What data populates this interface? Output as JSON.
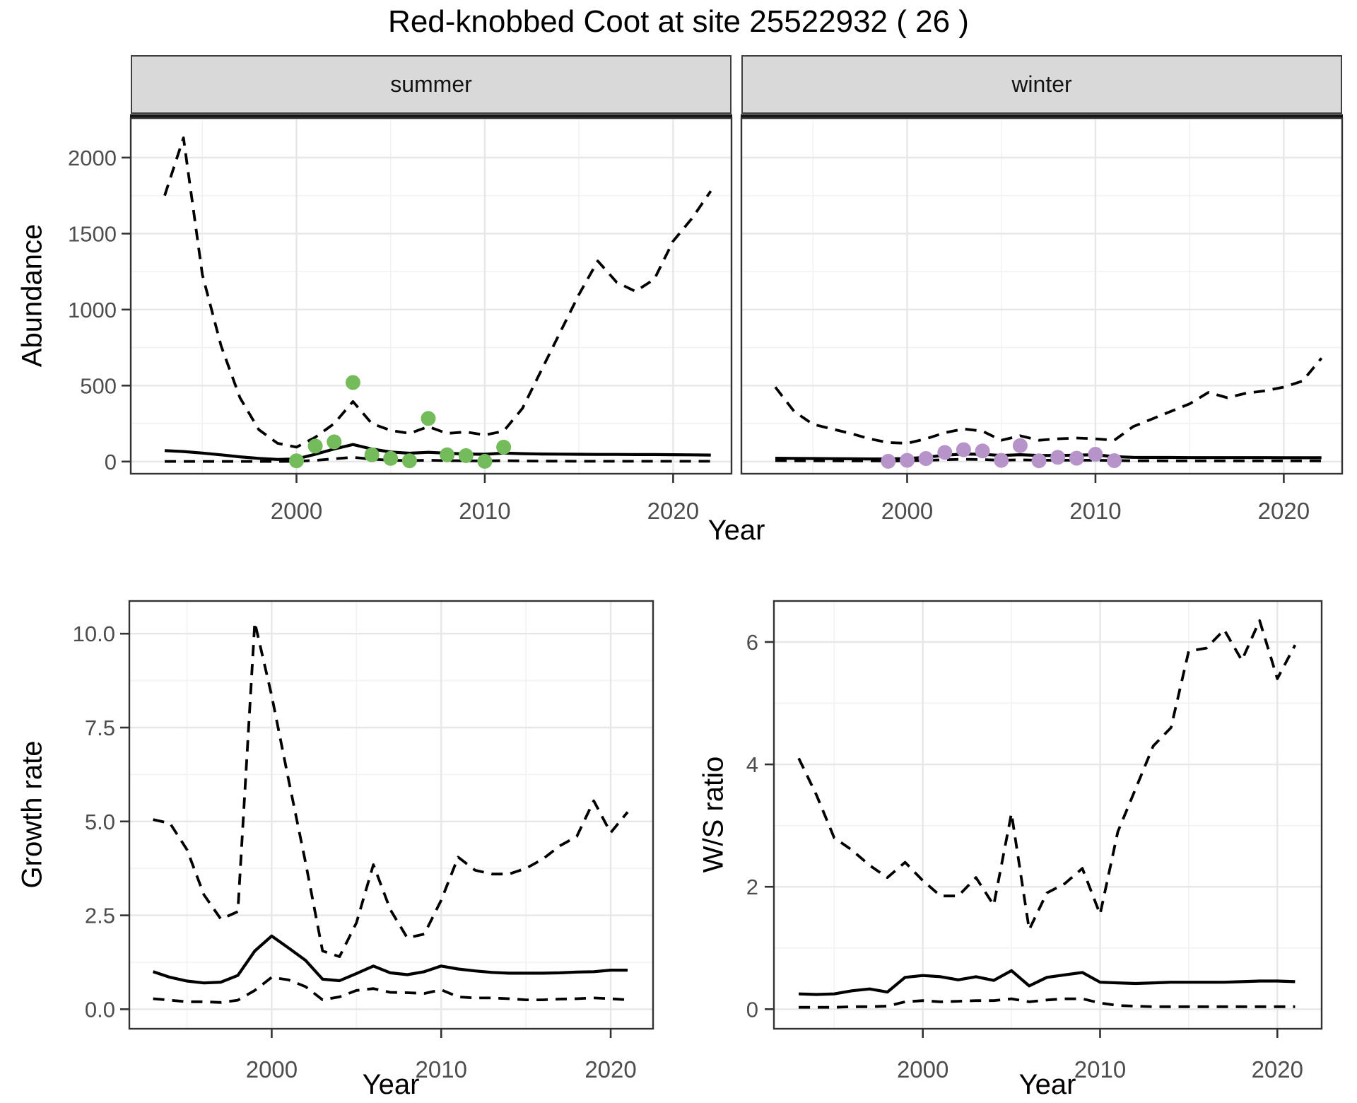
{
  "title": "Red-knobbed Coot at site 25522932 ( 26 )",
  "facets": [
    {
      "label": "summer"
    },
    {
      "label": "winter"
    }
  ],
  "axis_titles": {
    "abundance": "Abundance",
    "year_top": "Year",
    "growth": "Growth rate",
    "year_growth": "Year",
    "ws": "W/S ratio",
    "year_ws": "Year"
  },
  "colors": {
    "summer_points": "#73bb5b",
    "winter_points": "#b694ca",
    "line": "#000000",
    "strip_bg": "#d9d9d9",
    "panel_border": "#333333",
    "grid_major": "#e7e7e7",
    "grid_minor": "#f2f2f2",
    "tick_text": "#4d4d4d"
  },
  "chart_data": [
    {
      "id": "abundance_summer",
      "type": "line",
      "facet": "summer",
      "title": "Abundance - summer facet",
      "xlabel": "Year",
      "ylabel": "Abundance",
      "xlim": [
        1991.2,
        2023.1
      ],
      "ylim": [
        -80,
        2260
      ],
      "x_ticks": {
        "values": [
          2000,
          2010,
          2020
        ],
        "labels": [
          "2000",
          "2010",
          "2020"
        ]
      },
      "y_ticks": {
        "values": [
          0,
          500,
          1000,
          1500,
          2000
        ],
        "labels": [
          "0",
          "500",
          "1000",
          "1500",
          "2000"
        ]
      },
      "x": [
        1993,
        1994,
        1995,
        1996,
        1997,
        1998,
        1999,
        2000,
        2001,
        2002,
        2003,
        2004,
        2005,
        2006,
        2007,
        2008,
        2009,
        2010,
        2011,
        2012,
        2013,
        2014,
        2015,
        2016,
        2017,
        2018,
        2019,
        2020,
        2021,
        2022
      ],
      "series": [
        {
          "name": "upper_ci",
          "style": "dashed",
          "values": [
            1750,
            2130,
            1230,
            760,
            420,
            210,
            120,
            95,
            160,
            250,
            395,
            250,
            205,
            185,
            230,
            185,
            195,
            175,
            200,
            350,
            600,
            850,
            1100,
            1320,
            1180,
            1120,
            1200,
            1450,
            1600,
            1780
          ]
        },
        {
          "name": "mean",
          "style": "solid",
          "values": [
            72,
            66,
            56,
            44,
            31,
            21,
            14,
            17,
            48,
            83,
            112,
            83,
            63,
            55,
            61,
            55,
            50,
            48,
            56,
            52,
            50,
            49,
            48,
            47,
            47,
            46,
            46,
            45,
            44,
            43
          ]
        },
        {
          "name": "lower_ci",
          "style": "dashed",
          "values": [
            1,
            1,
            1,
            1,
            1,
            1,
            1,
            2,
            8,
            18,
            28,
            16,
            9,
            6,
            9,
            6,
            5,
            4,
            6,
            4,
            3,
            3,
            2,
            2,
            2,
            2,
            2,
            2,
            2,
            2
          ]
        }
      ],
      "points": {
        "name": "observed_counts_summer",
        "color": "#73bb5b",
        "x": [
          2000,
          2001,
          2002,
          2003,
          2004,
          2005,
          2006,
          2007,
          2008,
          2009,
          2010,
          2011
        ],
        "y": [
          5,
          102,
          130,
          520,
          44,
          21,
          5,
          284,
          44,
          39,
          2,
          95
        ]
      }
    },
    {
      "id": "abundance_winter",
      "type": "line",
      "facet": "winter",
      "title": "Abundance - winter facet",
      "xlabel": "Year",
      "ylabel": "Abundance",
      "xlim": [
        1991.2,
        2023.1
      ],
      "ylim": [
        -80,
        2260
      ],
      "x_ticks": {
        "values": [
          2000,
          2010,
          2020
        ],
        "labels": [
          "2000",
          "2010",
          "2020"
        ]
      },
      "y_ticks": {
        "values": [
          0,
          500,
          1000,
          1500,
          2000
        ],
        "labels": []
      },
      "x": [
        1993,
        1994,
        1995,
        1996,
        1997,
        1998,
        1999,
        2000,
        2001,
        2002,
        2003,
        2004,
        2005,
        2006,
        2007,
        2008,
        2009,
        2010,
        2011,
        2012,
        2013,
        2014,
        2015,
        2016,
        2017,
        2018,
        2019,
        2020,
        2021,
        2022
      ],
      "series": [
        {
          "name": "upper_ci",
          "style": "dashed",
          "values": [
            490,
            330,
            245,
            215,
            185,
            150,
            125,
            120,
            150,
            190,
            215,
            200,
            140,
            170,
            140,
            150,
            155,
            150,
            140,
            230,
            280,
            330,
            380,
            455,
            420,
            450,
            465,
            490,
            530,
            680
          ]
        },
        {
          "name": "mean",
          "style": "solid",
          "values": [
            22,
            21,
            20,
            19,
            18,
            17,
            17,
            20,
            28,
            42,
            50,
            48,
            40,
            45,
            40,
            40,
            42,
            45,
            32,
            28,
            27,
            27,
            26,
            26,
            26,
            26,
            26,
            25,
            25,
            25
          ]
        },
        {
          "name": "lower_ci",
          "style": "dashed",
          "values": [
            6,
            5,
            5,
            5,
            4,
            4,
            4,
            5,
            8,
            12,
            15,
            13,
            9,
            11,
            9,
            9,
            9,
            9,
            7,
            5,
            5,
            4,
            4,
            4,
            4,
            4,
            4,
            4,
            4,
            4
          ]
        }
      ],
      "points": {
        "name": "observed_counts_winter",
        "color": "#b694ca",
        "x": [
          1999,
          2000,
          2001,
          2002,
          2003,
          2004,
          2005,
          2006,
          2007,
          2008,
          2009,
          2010,
          2011
        ],
        "y": [
          2,
          8,
          20,
          60,
          78,
          70,
          8,
          105,
          5,
          28,
          22,
          48,
          6
        ]
      }
    },
    {
      "id": "growth_rate",
      "type": "line",
      "facet": null,
      "title": "Growth rate",
      "xlabel": "Year",
      "ylabel": "Growth rate",
      "xlim": [
        1991.6,
        2022.5
      ],
      "ylim": [
        -0.52,
        10.87
      ],
      "x_ticks": {
        "values": [
          2000,
          2010,
          2020
        ],
        "labels": [
          "2000",
          "2010",
          "2020"
        ]
      },
      "y_ticks": {
        "values": [
          0,
          2.5,
          5,
          7.5,
          10
        ],
        "labels": [
          "0.0",
          "2.5",
          "5.0",
          "7.5",
          "10.0"
        ]
      },
      "x": [
        1993,
        1994,
        1995,
        1996,
        1997,
        1998,
        1999,
        2000,
        2001,
        2002,
        2003,
        2004,
        2005,
        2006,
        2007,
        2008,
        2009,
        2010,
        2011,
        2012,
        2013,
        2014,
        2015,
        2016,
        2017,
        2018,
        2019,
        2020,
        2021
      ],
      "series": [
        {
          "name": "upper_ci",
          "style": "dashed",
          "values": [
            5.05,
            4.95,
            4.25,
            3.05,
            2.4,
            2.6,
            10.3,
            8.35,
            6.1,
            3.9,
            1.55,
            1.4,
            2.3,
            3.85,
            2.65,
            1.9,
            2.0,
            2.9,
            4.05,
            3.7,
            3.6,
            3.6,
            3.75,
            4.0,
            4.35,
            4.6,
            5.55,
            4.7,
            5.25
          ]
        },
        {
          "name": "mean",
          "style": "solid",
          "values": [
            1.0,
            0.85,
            0.75,
            0.7,
            0.72,
            0.9,
            1.55,
            1.95,
            1.63,
            1.3,
            0.8,
            0.76,
            0.95,
            1.15,
            0.97,
            0.92,
            1.0,
            1.15,
            1.07,
            1.02,
            0.98,
            0.96,
            0.96,
            0.96,
            0.97,
            0.99,
            1.0,
            1.04,
            1.04
          ]
        },
        {
          "name": "lower_ci",
          "style": "dashed",
          "values": [
            0.28,
            0.24,
            0.2,
            0.2,
            0.18,
            0.24,
            0.5,
            0.85,
            0.78,
            0.6,
            0.25,
            0.33,
            0.5,
            0.55,
            0.45,
            0.44,
            0.42,
            0.52,
            0.33,
            0.3,
            0.3,
            0.28,
            0.25,
            0.25,
            0.27,
            0.28,
            0.3,
            0.28,
            0.25
          ]
        }
      ],
      "points": null
    },
    {
      "id": "ws_ratio",
      "type": "line",
      "facet": null,
      "title": "W/S ratio",
      "xlabel": "Year",
      "ylabel": "W/S ratio",
      "xlim": [
        1991.6,
        2022.5
      ],
      "ylim": [
        -0.32,
        6.67
      ],
      "x_ticks": {
        "values": [
          2000,
          2010,
          2020
        ],
        "labels": [
          "2000",
          "2010",
          "2020"
        ]
      },
      "y_ticks": {
        "values": [
          0,
          2,
          4,
          6
        ],
        "labels": [
          "0",
          "2",
          "4",
          "6"
        ]
      },
      "x": [
        1993,
        1994,
        1995,
        1996,
        1997,
        1998,
        1999,
        2000,
        2001,
        2002,
        2003,
        2004,
        2005,
        2006,
        2007,
        2008,
        2009,
        2010,
        2011,
        2012,
        2013,
        2014,
        2015,
        2016,
        2017,
        2018,
        2019,
        2020,
        2021
      ],
      "series": [
        {
          "name": "upper_ci",
          "style": "dashed",
          "values": [
            4.1,
            3.5,
            2.8,
            2.6,
            2.35,
            2.15,
            2.4,
            2.1,
            1.85,
            1.85,
            2.15,
            1.7,
            3.2,
            1.3,
            1.9,
            2.05,
            2.3,
            1.55,
            2.9,
            3.6,
            4.3,
            4.6,
            5.85,
            5.9,
            6.2,
            5.7,
            6.35,
            5.4,
            5.95
          ]
        },
        {
          "name": "mean",
          "style": "solid",
          "values": [
            0.25,
            0.24,
            0.25,
            0.3,
            0.33,
            0.28,
            0.52,
            0.55,
            0.53,
            0.48,
            0.53,
            0.47,
            0.63,
            0.38,
            0.52,
            0.56,
            0.6,
            0.44,
            0.43,
            0.42,
            0.43,
            0.44,
            0.44,
            0.44,
            0.44,
            0.45,
            0.46,
            0.46,
            0.45
          ]
        },
        {
          "name": "lower_ci",
          "style": "dashed",
          "values": [
            0.03,
            0.03,
            0.03,
            0.04,
            0.04,
            0.05,
            0.12,
            0.14,
            0.12,
            0.13,
            0.14,
            0.14,
            0.17,
            0.12,
            0.15,
            0.17,
            0.17,
            0.1,
            0.06,
            0.05,
            0.04,
            0.04,
            0.04,
            0.04,
            0.04,
            0.04,
            0.04,
            0.04,
            0.04
          ]
        }
      ],
      "points": null
    }
  ]
}
